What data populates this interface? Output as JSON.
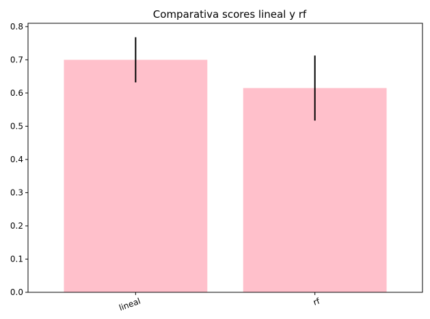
{
  "chart_data": {
    "type": "bar",
    "title": "Comparativa scores lineal y rf",
    "xlabel": "",
    "ylabel": "",
    "categories": [
      "lineal",
      "rf"
    ],
    "values": [
      0.7,
      0.615
    ],
    "errors": [
      0.068,
      0.098
    ],
    "ylim": [
      0,
      0.81
    ],
    "yticks": [
      0.0,
      0.1,
      0.2,
      0.3,
      0.4,
      0.5,
      0.6,
      0.7,
      0.8
    ],
    "ytick_labels": [
      "0.0",
      "0.1",
      "0.2",
      "0.3",
      "0.4",
      "0.5",
      "0.6",
      "0.7",
      "0.8"
    ],
    "bar_color": "#ffc0cb",
    "error_color": "#000000",
    "xtick_rotation_deg": -20,
    "grid": false,
    "legend": "none"
  }
}
